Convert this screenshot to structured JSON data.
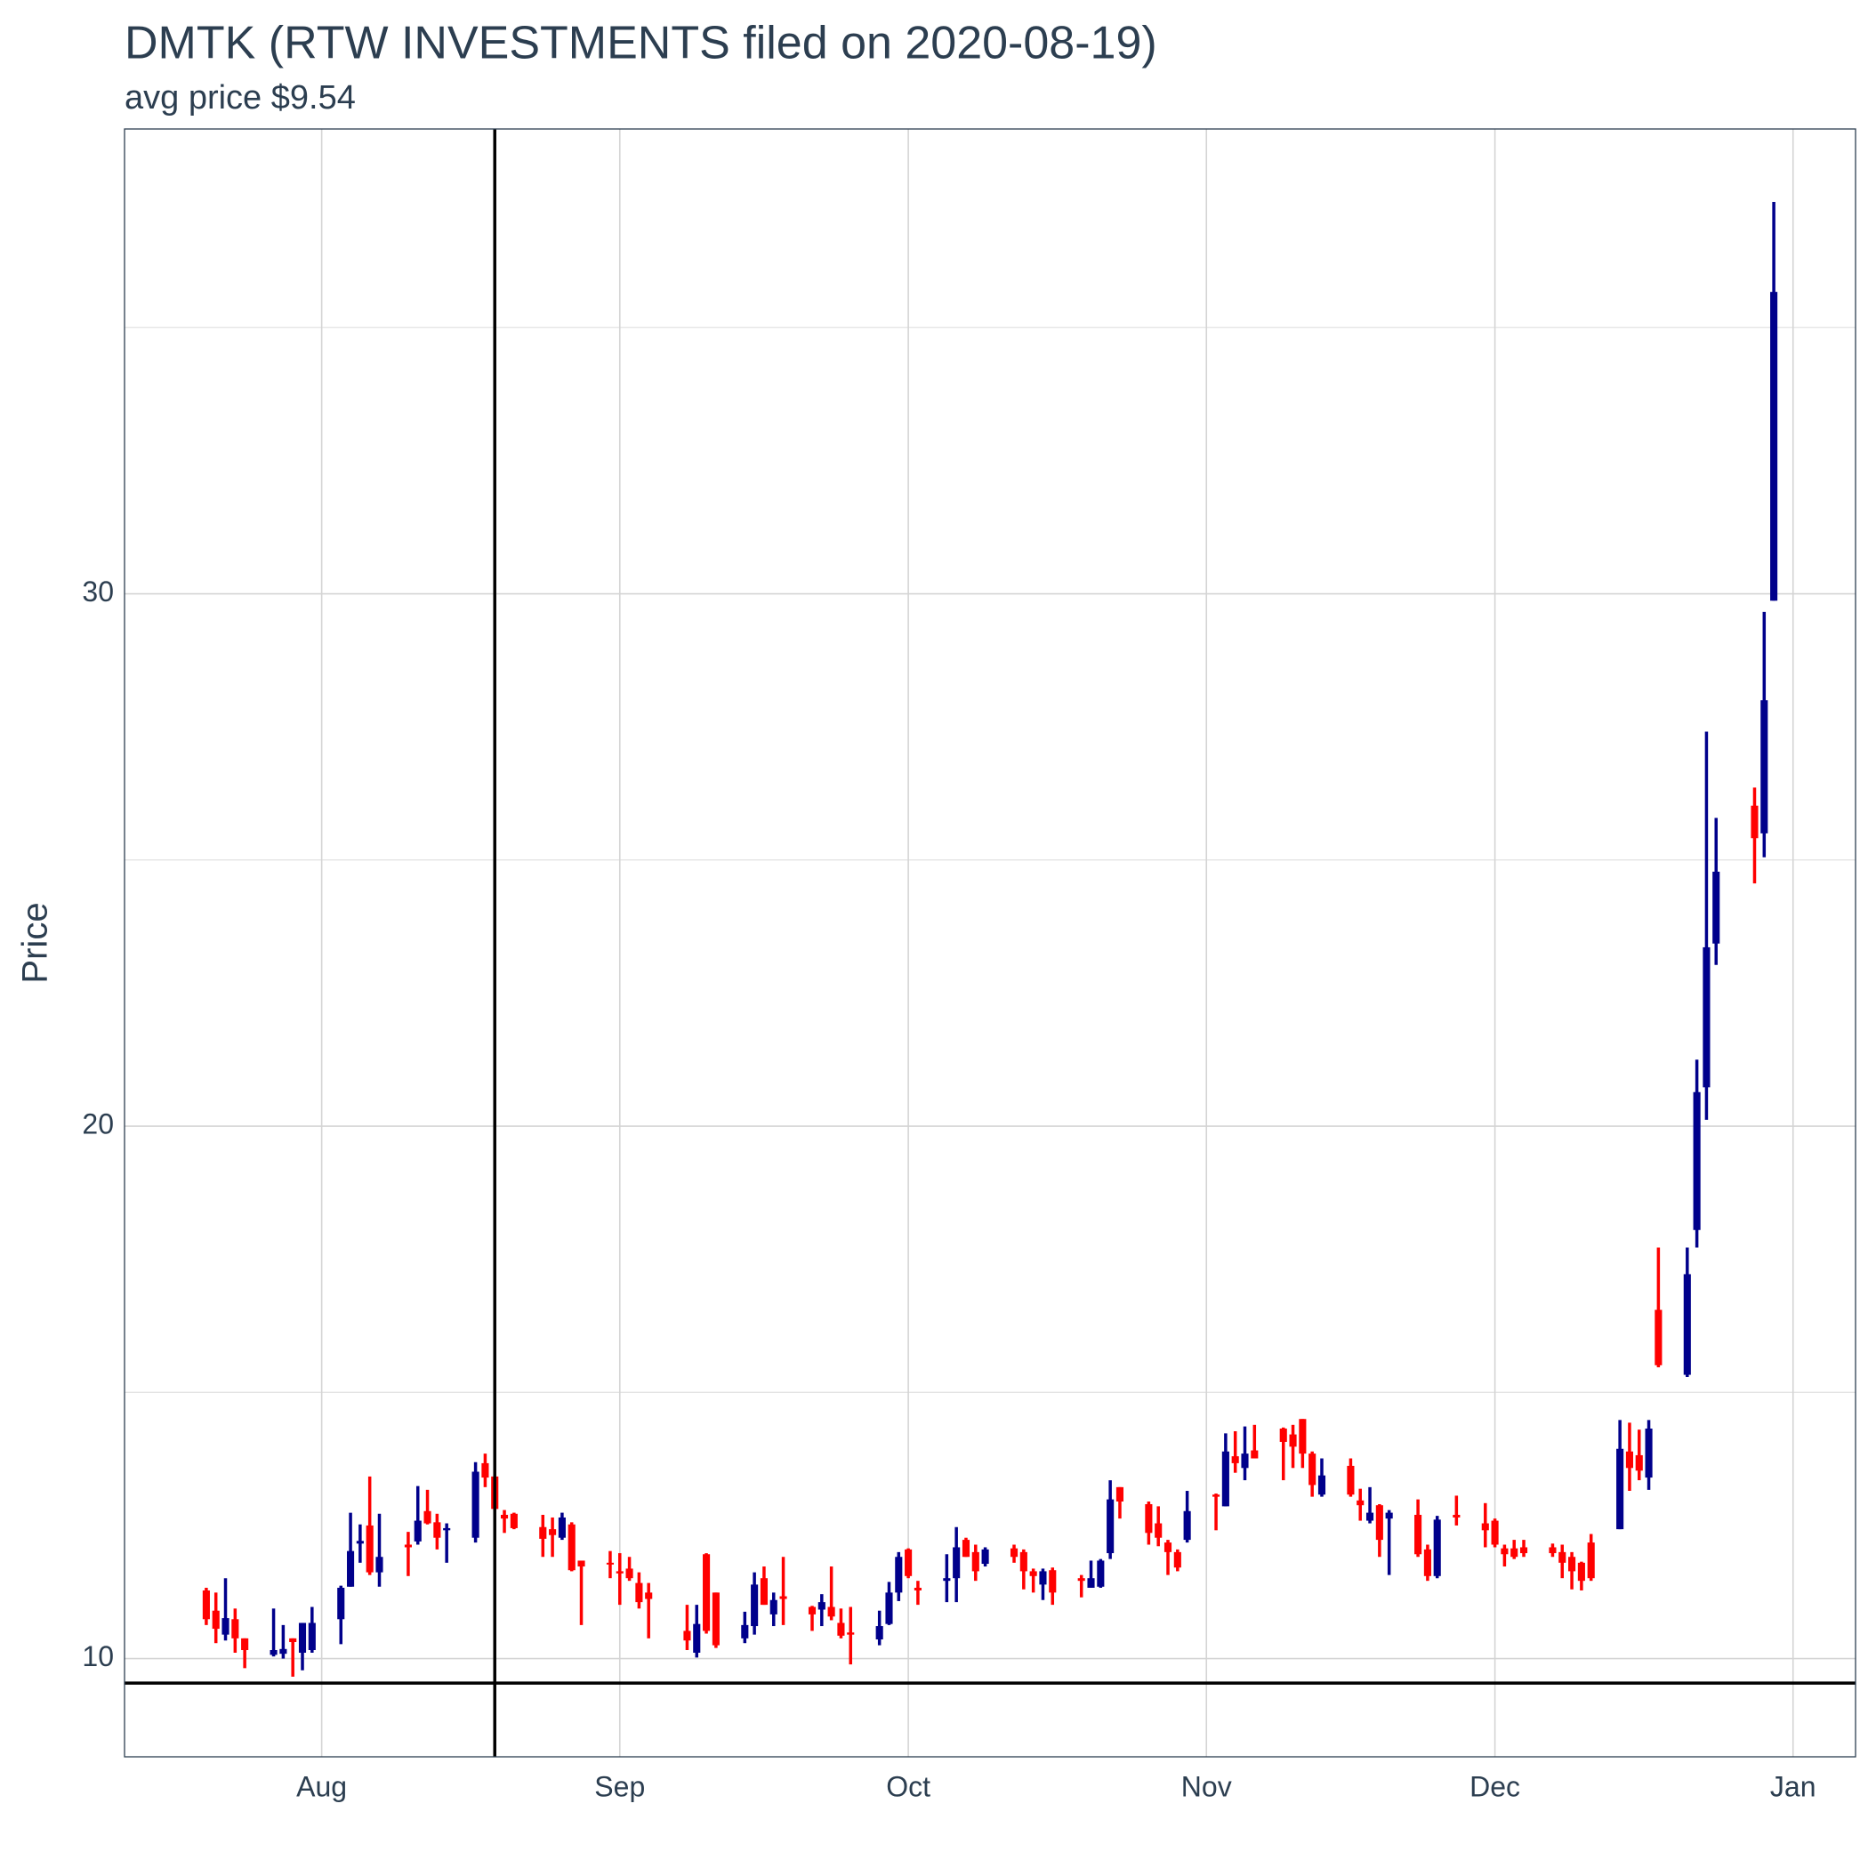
{
  "chart_data": {
    "type": "candlestick",
    "title": "DMTK (RTW INVESTMENTS filed on 2020-08-19)",
    "subtitle": "avg price $9.54",
    "y_label": "Price",
    "up_color": "#00008b",
    "down_color": "#ff0000",
    "vline": 232,
    "hline": 9.54,
    "xlim": [
      193.5,
      373.5
    ],
    "xticks": [
      {
        "value": 214,
        "label": "Aug"
      },
      {
        "value": 245,
        "label": "Sep"
      },
      {
        "value": 275,
        "label": "Oct"
      },
      {
        "value": 306,
        "label": "Nov"
      },
      {
        "value": 336,
        "label": "Dec"
      },
      {
        "value": 367,
        "label": "Jan"
      }
    ],
    "ylim": [
      8.155,
      38.73
    ],
    "yticks": [
      10,
      20,
      30
    ],
    "grid": true,
    "x": [
      202,
      203,
      204,
      205,
      206,
      209,
      210,
      211,
      212,
      213,
      216,
      217,
      218,
      219,
      220,
      223,
      224,
      225,
      226,
      227,
      230,
      231,
      232,
      233,
      234,
      237,
      238,
      239,
      240,
      241,
      244,
      245,
      246,
      247,
      248,
      252,
      253,
      254,
      255,
      258,
      259,
      260,
      261,
      262,
      265,
      266,
      267,
      268,
      269,
      272,
      273,
      274,
      275,
      276,
      279,
      280,
      281,
      282,
      283,
      286,
      287,
      288,
      289,
      290,
      293,
      294,
      295,
      296,
      297,
      300,
      301,
      302,
      303,
      304,
      307,
      308,
      309,
      310,
      311,
      314,
      315,
      316,
      317,
      318,
      321,
      322,
      323,
      324,
      325,
      328,
      329,
      330,
      332,
      335,
      336,
      337,
      338,
      339,
      342,
      343,
      344,
      345,
      346,
      349,
      350,
      351,
      352,
      353,
      356,
      357,
      358,
      359,
      363,
      364,
      365
    ],
    "open": [
      11.28,
      10.9,
      10.45,
      10.74,
      10.38,
      10.07,
      10.09,
      10.38,
      10.11,
      10.16,
      10.74,
      11.35,
      12.16,
      12.5,
      11.62,
      12.14,
      12.2,
      12.77,
      12.56,
      12.41,
      12.27,
      13.67,
      13.42,
      12.7,
      12.72,
      12.47,
      12.43,
      12.27,
      12.52,
      11.84,
      11.8,
      11.64,
      11.69,
      11.42,
      11.24,
      10.52,
      10.11,
      11.96,
      11.24,
      10.38,
      10.61,
      11.51,
      10.83,
      11.17,
      10.97,
      10.92,
      10.97,
      10.67,
      10.49,
      10.36,
      10.65,
      11.24,
      12.05,
      11.33,
      11.46,
      11.51,
      12.23,
      12.0,
      11.78,
      12.07,
      12.0,
      11.64,
      11.39,
      11.66,
      11.51,
      11.33,
      11.35,
      11.98,
      13.22,
      12.9,
      12.54,
      12.18,
      12.0,
      12.23,
      13.08,
      12.86,
      13.8,
      13.58,
      13.91,
      14.32,
      14.21,
      14.5,
      13.85,
      13.08,
      13.62,
      12.97,
      12.59,
      12.88,
      12.63,
      12.7,
      12.05,
      11.55,
      12.7,
      12.54,
      12.59,
      12.07,
      12.07,
      12.09,
      12.09,
      12.0,
      11.91,
      11.8,
      12.18,
      12.43,
      13.89,
      13.82,
      13.4,
      16.55,
      15.33,
      18.05,
      20.73,
      23.43,
      26.02,
      25.5,
      29.87
    ],
    "high": [
      11.33,
      11.24,
      11.51,
      10.94,
      10.38,
      10.94,
      10.63,
      10.38,
      10.67,
      10.97,
      11.37,
      12.74,
      12.52,
      13.42,
      12.72,
      12.38,
      13.24,
      13.17,
      12.72,
      12.54,
      13.69,
      13.85,
      13.42,
      12.79,
      12.74,
      12.7,
      12.65,
      12.74,
      12.56,
      11.84,
      12.02,
      11.98,
      11.91,
      11.62,
      11.42,
      11.01,
      11.01,
      11.98,
      11.24,
      10.88,
      11.62,
      11.73,
      11.24,
      11.91,
      10.99,
      11.21,
      11.73,
      10.94,
      10.97,
      10.9,
      11.44,
      12.0,
      12.07,
      11.46,
      11.96,
      12.47,
      12.27,
      12.14,
      12.09,
      12.14,
      12.05,
      11.69,
      11.69,
      11.71,
      11.57,
      11.84,
      11.87,
      13.35,
      13.22,
      12.95,
      12.86,
      12.23,
      12.05,
      13.15,
      13.1,
      14.23,
      14.27,
      14.36,
      14.39,
      14.34,
      14.39,
      14.5,
      13.89,
      13.76,
      13.76,
      13.19,
      13.22,
      12.9,
      12.79,
      12.99,
      12.14,
      12.68,
      13.06,
      12.92,
      12.63,
      12.14,
      12.23,
      12.23,
      12.16,
      12.14,
      12.0,
      11.82,
      12.34,
      14.48,
      14.43,
      14.3,
      14.48,
      17.72,
      17.72,
      21.25,
      27.41,
      25.79,
      26.36,
      29.66,
      37.36
    ],
    "low": [
      10.63,
      10.29,
      10.34,
      10.11,
      9.82,
      10.04,
      10.0,
      9.66,
      9.78,
      10.11,
      10.27,
      11.35,
      11.8,
      11.57,
      11.35,
      11.55,
      12.14,
      12.52,
      12.05,
      11.8,
      12.18,
      13.22,
      12.77,
      12.36,
      12.43,
      11.91,
      11.91,
      12.23,
      11.64,
      10.63,
      11.51,
      11.01,
      11.46,
      10.94,
      10.38,
      10.16,
      10.02,
      10.47,
      10.2,
      10.29,
      10.45,
      11.01,
      10.61,
      10.63,
      10.52,
      10.61,
      10.72,
      10.38,
      9.89,
      10.25,
      10.63,
      11.08,
      11.51,
      11.01,
      11.06,
      11.06,
      11.91,
      11.46,
      11.73,
      11.8,
      11.3,
      11.24,
      11.1,
      11.01,
      11.15,
      11.33,
      11.33,
      11.87,
      12.63,
      12.14,
      12.11,
      11.57,
      11.64,
      12.18,
      12.41,
      12.86,
      13.49,
      13.35,
      13.76,
      13.35,
      13.58,
      13.58,
      13.04,
      13.04,
      13.04,
      12.59,
      12.54,
      11.91,
      11.57,
      11.91,
      11.46,
      11.51,
      12.5,
      12.09,
      12.09,
      11.73,
      11.87,
      11.91,
      11.91,
      11.51,
      11.3,
      11.28,
      11.46,
      12.43,
      13.15,
      13.35,
      13.17,
      15.47,
      15.29,
      17.72,
      20.12,
      23.03,
      24.56,
      25.05,
      29.87
    ],
    "close": [
      10.74,
      10.56,
      10.76,
      10.38,
      10.16,
      10.16,
      10.18,
      10.31,
      10.67,
      10.67,
      11.33,
      12.02,
      12.21,
      11.62,
      11.91,
      12.09,
      12.59,
      12.54,
      12.27,
      12.45,
      13.51,
      13.4,
      12.81,
      12.63,
      12.45,
      12.25,
      12.32,
      12.65,
      11.66,
      11.73,
      11.78,
      11.6,
      11.51,
      11.06,
      11.12,
      10.34,
      10.65,
      10.52,
      10.25,
      10.63,
      11.39,
      11.01,
      11.1,
      11.12,
      10.83,
      11.06,
      10.79,
      10.43,
      10.45,
      10.61,
      11.24,
      11.91,
      11.55,
      11.28,
      11.51,
      12.09,
      11.91,
      11.64,
      12.05,
      11.91,
      11.64,
      11.55,
      11.64,
      11.24,
      11.46,
      11.51,
      11.84,
      12.99,
      12.95,
      12.36,
      12.27,
      12.0,
      11.71,
      12.77,
      13.04,
      13.89,
      13.67,
      13.85,
      13.76,
      14.07,
      13.98,
      13.85,
      13.26,
      13.44,
      13.08,
      12.88,
      12.74,
      12.23,
      12.74,
      11.96,
      11.55,
      12.61,
      12.65,
      12.41,
      12.14,
      11.96,
      11.91,
      11.98,
      11.98,
      11.8,
      11.64,
      11.46,
      11.51,
      13.94,
      13.58,
      13.53,
      14.32,
      15.51,
      17.22,
      20.64,
      23.36,
      24.78,
      25.41,
      28.0,
      35.67
    ]
  }
}
